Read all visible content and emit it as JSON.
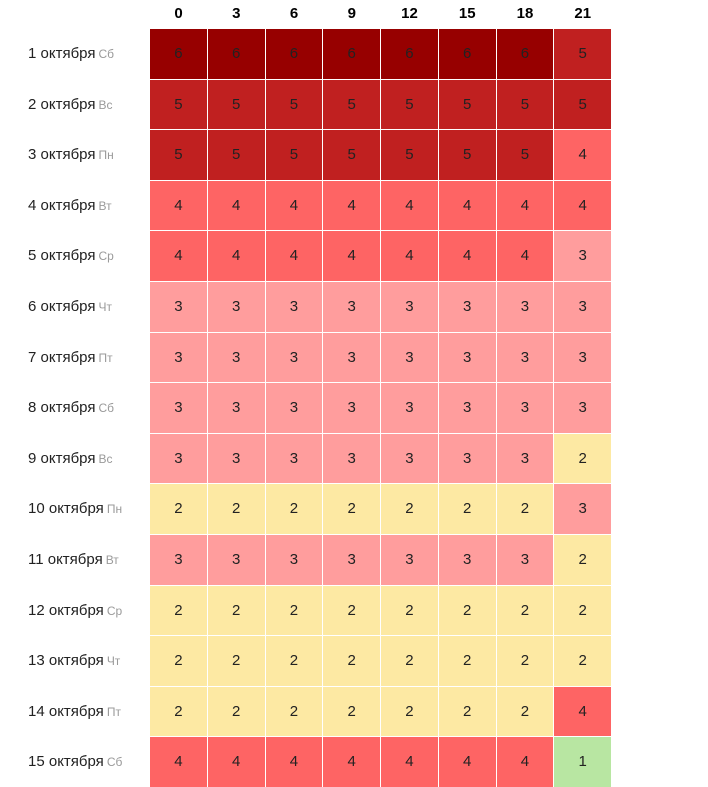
{
  "chart_data": {
    "type": "heatmap",
    "title": "",
    "xlabel": "",
    "ylabel": "",
    "hours": [
      "0",
      "3",
      "6",
      "9",
      "12",
      "15",
      "18",
      "21"
    ],
    "rows": [
      {
        "date": "1 октября",
        "weekday": "Сб",
        "values": [
          6,
          6,
          6,
          6,
          6,
          6,
          6,
          5
        ]
      },
      {
        "date": "2 октября",
        "weekday": "Вс",
        "values": [
          5,
          5,
          5,
          5,
          5,
          5,
          5,
          5
        ]
      },
      {
        "date": "3 октября",
        "weekday": "Пн",
        "values": [
          5,
          5,
          5,
          5,
          5,
          5,
          5,
          4
        ]
      },
      {
        "date": "4 октября",
        "weekday": "Вт",
        "values": [
          4,
          4,
          4,
          4,
          4,
          4,
          4,
          4
        ]
      },
      {
        "date": "5 октября",
        "weekday": "Ср",
        "values": [
          4,
          4,
          4,
          4,
          4,
          4,
          4,
          3
        ]
      },
      {
        "date": "6 октября",
        "weekday": "Чт",
        "values": [
          3,
          3,
          3,
          3,
          3,
          3,
          3,
          3
        ]
      },
      {
        "date": "7 октября",
        "weekday": "Пт",
        "values": [
          3,
          3,
          3,
          3,
          3,
          3,
          3,
          3
        ]
      },
      {
        "date": "8 октября",
        "weekday": "Сб",
        "values": [
          3,
          3,
          3,
          3,
          3,
          3,
          3,
          3
        ]
      },
      {
        "date": "9 октября",
        "weekday": "Вс",
        "values": [
          3,
          3,
          3,
          3,
          3,
          3,
          3,
          2
        ]
      },
      {
        "date": "10 октября",
        "weekday": "Пн",
        "values": [
          2,
          2,
          2,
          2,
          2,
          2,
          2,
          3
        ]
      },
      {
        "date": "11 октября",
        "weekday": "Вт",
        "values": [
          3,
          3,
          3,
          3,
          3,
          3,
          3,
          2
        ]
      },
      {
        "date": "12 октября",
        "weekday": "Ср",
        "values": [
          2,
          2,
          2,
          2,
          2,
          2,
          2,
          2
        ]
      },
      {
        "date": "13 октября",
        "weekday": "Чт",
        "values": [
          2,
          2,
          2,
          2,
          2,
          2,
          2,
          2
        ]
      },
      {
        "date": "14 октября",
        "weekday": "Пт",
        "values": [
          2,
          2,
          2,
          2,
          2,
          2,
          2,
          4
        ]
      },
      {
        "date": "15 октября",
        "weekday": "Сб",
        "values": [
          4,
          4,
          4,
          4,
          4,
          4,
          4,
          1
        ]
      }
    ],
    "color_scale": {
      "1": "#b8e6a2",
      "2": "#fde9a3",
      "3": "#ff9d9d",
      "4": "#fe6464",
      "5": "#c02020",
      "6": "#970000"
    },
    "grid": true,
    "legend": "none"
  }
}
